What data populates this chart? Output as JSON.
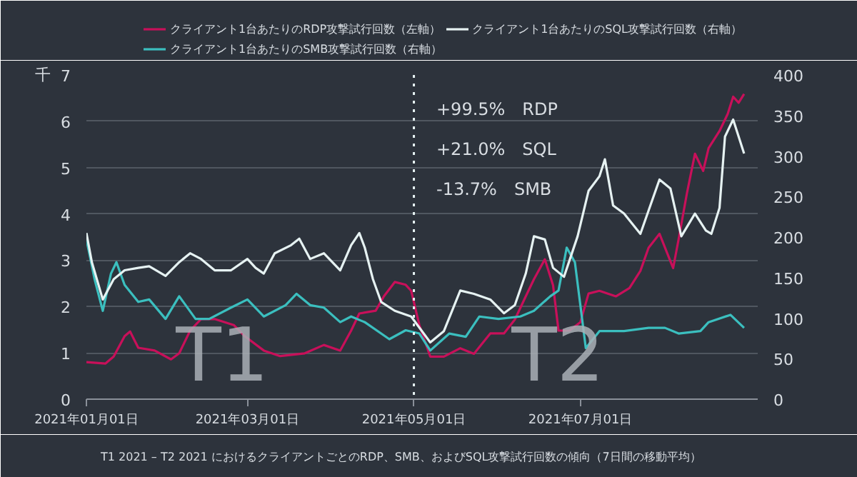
{
  "chart_data": {
    "type": "line",
    "xlim": [
      "2021-01-01",
      "2021-09-04"
    ],
    "xticks": [
      {
        "value": "2021-01-01",
        "label": "2021年01月01日"
      },
      {
        "value": "2021-03-01",
        "label": "2021年03月01日"
      },
      {
        "value": "2021-05-01",
        "label": "2021年05月01日"
      },
      {
        "value": "2021-07-01",
        "label": "2021年07月01日"
      }
    ],
    "ylabel": "千",
    "ylim": [
      0,
      7
    ],
    "yticks": [
      0,
      1,
      2,
      3,
      4,
      5,
      6,
      7
    ],
    "y2lim": [
      0,
      400
    ],
    "y2ticks": [
      0,
      50,
      100,
      150,
      200,
      250,
      300,
      350,
      400
    ],
    "grid": "y",
    "legend": "top",
    "series": [
      {
        "name": "クライアント1台あたりのRDP攻撃試行回数（左軸）",
        "color": "#c8105a",
        "x": [
          "2021-01-01",
          "2021-01-08",
          "2021-01-11",
          "2021-01-15",
          "2021-01-17",
          "2021-01-20",
          "2021-01-26",
          "2021-02-01",
          "2021-02-04",
          "2021-02-08",
          "2021-02-12",
          "2021-02-17",
          "2021-02-24",
          "2021-02-28",
          "2021-03-07",
          "2021-03-13",
          "2021-03-22",
          "2021-03-29",
          "2021-04-04",
          "2021-04-08",
          "2021-04-11",
          "2021-04-17",
          "2021-04-20",
          "2021-04-24",
          "2021-04-28",
          "2021-04-30",
          "2021-05-03",
          "2021-05-07",
          "2021-05-12",
          "2021-05-18",
          "2021-05-23",
          "2021-05-29",
          "2021-06-03",
          "2021-06-07",
          "2021-06-11",
          "2021-06-14",
          "2021-06-18",
          "2021-06-21",
          "2021-06-23",
          "2021-06-27",
          "2021-07-01",
          "2021-07-04",
          "2021-07-08",
          "2021-07-14",
          "2021-07-19",
          "2021-07-23",
          "2021-07-26",
          "2021-07-30",
          "2021-08-04",
          "2021-08-06",
          "2021-08-09",
          "2021-08-12",
          "2021-08-15",
          "2021-08-17",
          "2021-08-21",
          "2021-08-24",
          "2021-08-26",
          "2021-08-28",
          "2021-08-30"
        ],
        "values": [
          0.8,
          0.77,
          0.92,
          1.36,
          1.46,
          1.11,
          1.05,
          0.86,
          0.99,
          1.48,
          1.73,
          1.73,
          1.6,
          1.36,
          1.05,
          0.93,
          0.99,
          1.17,
          1.05,
          1.48,
          1.85,
          1.91,
          2.22,
          2.53,
          2.47,
          2.34,
          1.6,
          0.92,
          0.92,
          1.1,
          0.98,
          1.42,
          1.42,
          1.72,
          2.22,
          2.59,
          3.02,
          2.46,
          1.48,
          1.48,
          1.66,
          2.28,
          2.34,
          2.22,
          2.4,
          2.77,
          3.27,
          3.57,
          2.83,
          3.45,
          4.43,
          5.3,
          4.93,
          5.42,
          5.79,
          6.16,
          6.53,
          6.4,
          6.59
        ]
      },
      {
        "name": "クライアント1台あたりのSMB攻撃試行回数（右軸）",
        "color": "#3bbfbf",
        "axis": "y2",
        "x": [
          "2021-01-01",
          "2021-01-04",
          "2021-01-07",
          "2021-01-10",
          "2021-01-12",
          "2021-01-15",
          "2021-01-20",
          "2021-01-24",
          "2021-01-30",
          "2021-02-04",
          "2021-02-10",
          "2021-02-15",
          "2021-02-23",
          "2021-03-01",
          "2021-03-07",
          "2021-03-15",
          "2021-03-19",
          "2021-03-24",
          "2021-03-29",
          "2021-04-04",
          "2021-04-08",
          "2021-04-13",
          "2021-04-22",
          "2021-04-28",
          "2021-05-03",
          "2021-05-07",
          "2021-05-14",
          "2021-05-20",
          "2021-05-25",
          "2021-06-01",
          "2021-06-09",
          "2021-06-14",
          "2021-06-20",
          "2021-06-23",
          "2021-06-26",
          "2021-06-29",
          "2021-07-03",
          "2021-07-08",
          "2021-07-17",
          "2021-07-26",
          "2021-08-01",
          "2021-08-06",
          "2021-08-14",
          "2021-08-17",
          "2021-08-25",
          "2021-08-30"
        ],
        "values": [
          197,
          148,
          109,
          155,
          169,
          141,
          120,
          123,
          99,
          127,
          99,
          99,
          113,
          123,
          102,
          116,
          130,
          116,
          113,
          95,
          102,
          95,
          74,
          85,
          81,
          60,
          81,
          77,
          102,
          99,
          102,
          109,
          127,
          134,
          187,
          169,
          63,
          84,
          84,
          88,
          88,
          81,
          84,
          95,
          104,
          88
        ]
      },
      {
        "name": "クライアント1台あたりのSQL攻撃試行回数（右軸）",
        "color": "#e6f2f2",
        "axis": "y2",
        "x": [
          "2021-01-01",
          "2021-01-03",
          "2021-01-07",
          "2021-01-11",
          "2021-01-15",
          "2021-01-20",
          "2021-01-24",
          "2021-01-30",
          "2021-02-04",
          "2021-02-08",
          "2021-02-12",
          "2021-02-17",
          "2021-02-23",
          "2021-03-01",
          "2021-03-04",
          "2021-03-07",
          "2021-03-11",
          "2021-03-17",
          "2021-03-20",
          "2021-03-24",
          "2021-03-29",
          "2021-04-04",
          "2021-04-08",
          "2021-04-11",
          "2021-04-13",
          "2021-04-16",
          "2021-04-19",
          "2021-04-24",
          "2021-04-30",
          "2021-05-07",
          "2021-05-12",
          "2021-05-18",
          "2021-05-23",
          "2021-05-29",
          "2021-06-03",
          "2021-06-07",
          "2021-06-11",
          "2021-06-14",
          "2021-06-18",
          "2021-06-21",
          "2021-06-25",
          "2021-06-30",
          "2021-07-04",
          "2021-07-08",
          "2021-07-10",
          "2021-07-13",
          "2021-07-17",
          "2021-07-23",
          "2021-07-30",
          "2021-08-03",
          "2021-08-07",
          "2021-08-12",
          "2021-08-16",
          "2021-08-18",
          "2021-08-21",
          "2021-08-23",
          "2021-08-26",
          "2021-08-30"
        ],
        "values": [
          205,
          169,
          123,
          148,
          159,
          162,
          164,
          152,
          169,
          180,
          173,
          159,
          159,
          173,
          162,
          155,
          180,
          190,
          198,
          173,
          180,
          159,
          190,
          205,
          187,
          148,
          120,
          109,
          102,
          70,
          84,
          134,
          130,
          123,
          106,
          116,
          155,
          201,
          197,
          162,
          151,
          201,
          257,
          275,
          296,
          239,
          229,
          204,
          271,
          260,
          201,
          229,
          208,
          204,
          236,
          324,
          345,
          303
        ]
      }
    ],
    "ref_lines": [
      {
        "axis": "x",
        "value": "2021-05-01",
        "label": null,
        "color": "#e6f2f2",
        "line_style": "dotted"
      }
    ],
    "annotations": [
      "T1",
      "T2",
      "+99.5%　RDP",
      "+21.0%　SQL",
      "-13.7%　SMB",
      "T1 2021 – T2 2021 におけるクライアントごとのRDP、SMB、およびSQL攻撃試行回数の傾向（7日間の移動平均）"
    ]
  }
}
